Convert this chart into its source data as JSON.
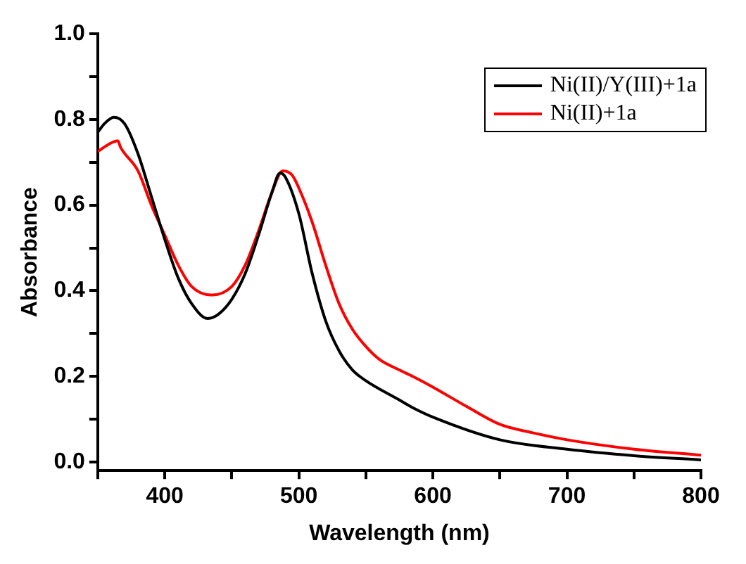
{
  "chart_data": {
    "type": "line",
    "xlabel": "Wavelength (nm)",
    "ylabel": "Absorbance",
    "xlim": [
      350,
      800
    ],
    "ylim": [
      -0.02,
      1.0
    ],
    "xticks": [
      {
        "value": 350,
        "label": null
      },
      400,
      {
        "value": 450,
        "label": null
      },
      500,
      {
        "value": 550,
        "label": null
      },
      600,
      {
        "value": 650,
        "label": null
      },
      700,
      {
        "value": 750,
        "label": null
      },
      800
    ],
    "yticks": [
      {
        "value": 0,
        "label": "0.0"
      },
      {
        "value": 0.1,
        "label": null
      },
      0.2,
      {
        "value": 0.3,
        "label": null
      },
      0.4,
      {
        "value": 0.5,
        "label": null
      },
      0.6,
      {
        "value": 0.7,
        "label": null
      },
      0.8,
      {
        "value": 0.9,
        "label": null
      },
      {
        "value": 1,
        "label": "1.0"
      }
    ],
    "grid": false,
    "legend": "top right",
    "marker": "none",
    "line_style": "solid",
    "series": [
      {
        "name": "Ni(II)/Y(III)+1a",
        "color": "#000000",
        "x": [
          350,
          355,
          362,
          370,
          380,
          390,
          400,
          410,
          420,
          432,
          440,
          450,
          460,
          470,
          480,
          486,
          490,
          500,
          510,
          520,
          530,
          540,
          550,
          575,
          585,
          600,
          650,
          700,
          750,
          800
        ],
        "values": [
          0.77,
          0.79,
          0.805,
          0.79,
          0.72,
          0.62,
          0.52,
          0.43,
          0.37,
          0.335,
          0.345,
          0.38,
          0.44,
          0.53,
          0.63,
          0.675,
          0.665,
          0.58,
          0.44,
          0.33,
          0.26,
          0.215,
          0.19,
          0.145,
          0.127,
          0.105,
          0.052,
          0.03,
          0.015,
          0.005
        ]
      },
      {
        "name": "Ni(II)+1a",
        "color": "#ff0000",
        "x": [
          350,
          360,
          365,
          367,
          380,
          390,
          400,
          410,
          420,
          435,
          450,
          460,
          470,
          480,
          488,
          495,
          500,
          510,
          520,
          530,
          540,
          550,
          560,
          575,
          585,
          600,
          625,
          650,
          675,
          700,
          750,
          800
        ],
        "values": [
          0.725,
          0.745,
          0.75,
          0.735,
          0.68,
          0.6,
          0.53,
          0.46,
          0.41,
          0.39,
          0.41,
          0.46,
          0.54,
          0.63,
          0.68,
          0.67,
          0.64,
          0.56,
          0.46,
          0.37,
          0.31,
          0.27,
          0.24,
          0.215,
          0.2,
          0.175,
          0.13,
          0.088,
          0.068,
          0.052,
          0.03,
          0.016
        ]
      }
    ]
  }
}
